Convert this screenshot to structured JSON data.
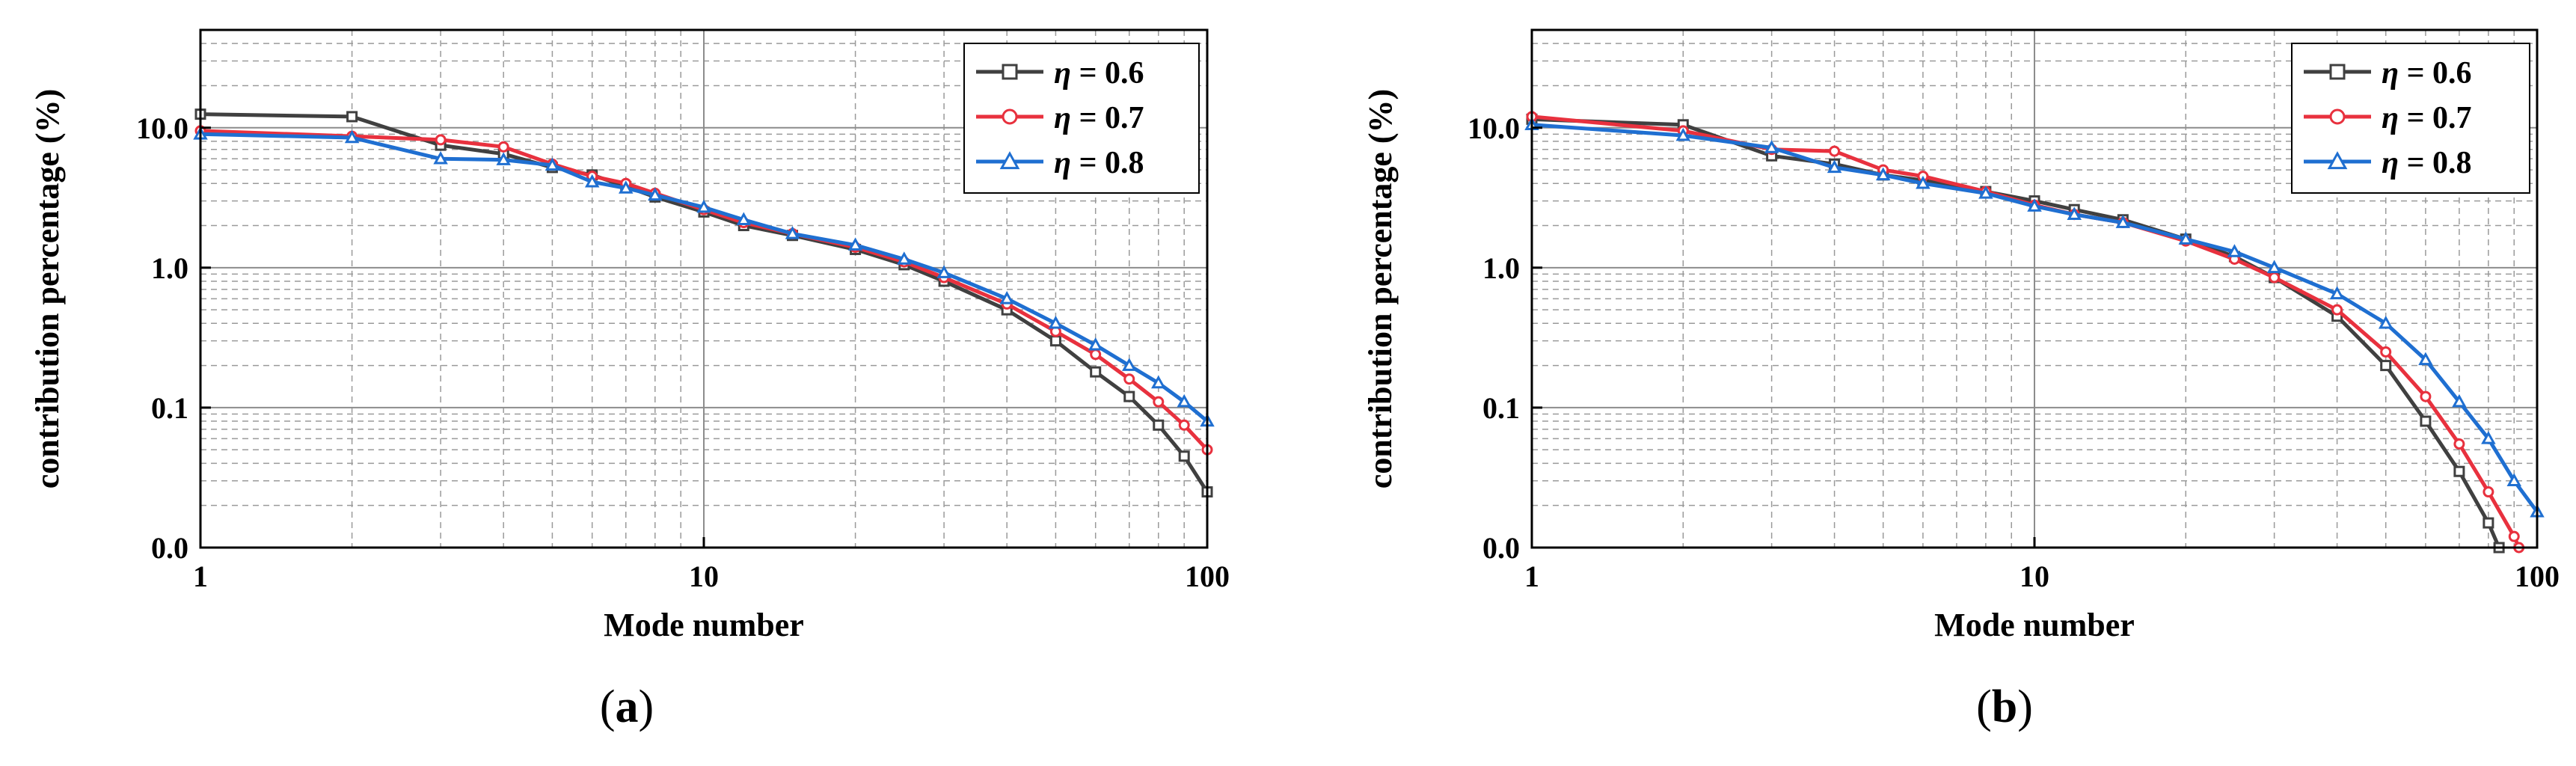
{
  "chart_data": [
    {
      "type": "line",
      "panel": "a",
      "caption_open": "(",
      "caption_letter": "a",
      "caption_close": ")",
      "xlabel": "Mode number",
      "ylabel": "contribution percentage (%)",
      "xscale": "log",
      "yscale": "log",
      "xlim": [
        1,
        100
      ],
      "ylim": [
        0.01,
        50
      ],
      "x_ticks": [
        {
          "v": 1,
          "label": "1"
        },
        {
          "v": 10,
          "label": "10"
        },
        {
          "v": 100,
          "label": "100"
        }
      ],
      "y_ticks": [
        {
          "v": 0.01,
          "label": "0.0"
        },
        {
          "v": 0.1,
          "label": "0.1"
        },
        {
          "v": 1,
          "label": "1.0"
        },
        {
          "v": 10,
          "label": "10.0"
        }
      ],
      "grid": true,
      "legend_position": "top-right",
      "series": [
        {
          "name": "η = 0.6",
          "color": "#404040",
          "marker": "square",
          "points": [
            [
              1,
              12.5
            ],
            [
              2,
              12.0
            ],
            [
              3,
              7.5
            ],
            [
              4,
              6.5
            ],
            [
              5,
              5.2
            ],
            [
              6,
              4.6
            ],
            [
              7,
              3.8
            ],
            [
              8,
              3.2
            ],
            [
              10,
              2.5
            ],
            [
              12,
              2.0
            ],
            [
              15,
              1.7
            ],
            [
              20,
              1.35
            ],
            [
              25,
              1.05
            ],
            [
              30,
              0.8
            ],
            [
              40,
              0.5
            ],
            [
              50,
              0.3
            ],
            [
              60,
              0.18
            ],
            [
              70,
              0.12
            ],
            [
              80,
              0.075
            ],
            [
              90,
              0.045
            ],
            [
              100,
              0.025
            ]
          ]
        },
        {
          "name": "η = 0.7",
          "color": "#e8313e",
          "marker": "circle",
          "points": [
            [
              1,
              9.5
            ],
            [
              2,
              8.7
            ],
            [
              3,
              8.2
            ],
            [
              4,
              7.3
            ],
            [
              5,
              5.5
            ],
            [
              6,
              4.5
            ],
            [
              7,
              4.0
            ],
            [
              8,
              3.4
            ],
            [
              10,
              2.6
            ],
            [
              12,
              2.1
            ],
            [
              15,
              1.75
            ],
            [
              20,
              1.4
            ],
            [
              25,
              1.1
            ],
            [
              30,
              0.85
            ],
            [
              40,
              0.55
            ],
            [
              50,
              0.35
            ],
            [
              60,
              0.24
            ],
            [
              70,
              0.16
            ],
            [
              80,
              0.11
            ],
            [
              90,
              0.075
            ],
            [
              100,
              0.05
            ]
          ]
        },
        {
          "name": "η = 0.8",
          "color": "#1f6fd1",
          "marker": "triangle",
          "points": [
            [
              1,
              9.0
            ],
            [
              2,
              8.5
            ],
            [
              3,
              6.0
            ],
            [
              4,
              5.9
            ],
            [
              5,
              5.4
            ],
            [
              6,
              4.1
            ],
            [
              7,
              3.7
            ],
            [
              8,
              3.3
            ],
            [
              10,
              2.7
            ],
            [
              12,
              2.2
            ],
            [
              15,
              1.75
            ],
            [
              20,
              1.45
            ],
            [
              25,
              1.15
            ],
            [
              30,
              0.92
            ],
            [
              40,
              0.6
            ],
            [
              50,
              0.4
            ],
            [
              60,
              0.28
            ],
            [
              70,
              0.2
            ],
            [
              80,
              0.15
            ],
            [
              90,
              0.11
            ],
            [
              100,
              0.08
            ]
          ]
        }
      ]
    },
    {
      "type": "line",
      "panel": "b",
      "caption_open": "(",
      "caption_letter": "b",
      "caption_close": ")",
      "xlabel": "Mode number",
      "ylabel": "contribution percentage (%)",
      "xscale": "log",
      "yscale": "log",
      "xlim": [
        1,
        100
      ],
      "ylim": [
        0.01,
        50
      ],
      "x_ticks": [
        {
          "v": 1,
          "label": "1"
        },
        {
          "v": 10,
          "label": "10"
        },
        {
          "v": 100,
          "label": "100"
        }
      ],
      "y_ticks": [
        {
          "v": 0.01,
          "label": "0.0"
        },
        {
          "v": 0.1,
          "label": "0.1"
        },
        {
          "v": 1,
          "label": "1.0"
        },
        {
          "v": 10,
          "label": "10.0"
        }
      ],
      "grid": true,
      "legend_position": "top-right",
      "series": [
        {
          "name": "η = 0.6",
          "color": "#404040",
          "marker": "square",
          "points": [
            [
              1,
              11.5
            ],
            [
              2,
              10.5
            ],
            [
              3,
              6.3
            ],
            [
              4,
              5.5
            ],
            [
              5,
              4.6
            ],
            [
              6,
              4.2
            ],
            [
              8,
              3.5
            ],
            [
              10,
              3.0
            ],
            [
              12,
              2.6
            ],
            [
              15,
              2.2
            ],
            [
              20,
              1.6
            ],
            [
              25,
              1.2
            ],
            [
              30,
              0.85
            ],
            [
              40,
              0.45
            ],
            [
              50,
              0.2
            ],
            [
              60,
              0.08
            ],
            [
              70,
              0.035
            ],
            [
              80,
              0.015
            ],
            [
              84,
              0.01
            ]
          ]
        },
        {
          "name": "η = 0.7",
          "color": "#e8313e",
          "marker": "circle",
          "points": [
            [
              1,
              12.0
            ],
            [
              2,
              9.5
            ],
            [
              3,
              7.0
            ],
            [
              4,
              6.8
            ],
            [
              5,
              5.0
            ],
            [
              6,
              4.5
            ],
            [
              8,
              3.5
            ],
            [
              10,
              2.8
            ],
            [
              12,
              2.4
            ],
            [
              15,
              2.1
            ],
            [
              20,
              1.55
            ],
            [
              25,
              1.15
            ],
            [
              30,
              0.85
            ],
            [
              40,
              0.5
            ],
            [
              50,
              0.25
            ],
            [
              60,
              0.12
            ],
            [
              70,
              0.055
            ],
            [
              80,
              0.025
            ],
            [
              90,
              0.012
            ],
            [
              92,
              0.01
            ]
          ]
        },
        {
          "name": "η = 0.8",
          "color": "#1f6fd1",
          "marker": "triangle",
          "points": [
            [
              1,
              10.5
            ],
            [
              2,
              8.8
            ],
            [
              3,
              7.2
            ],
            [
              4,
              5.2
            ],
            [
              5,
              4.6
            ],
            [
              6,
              4.0
            ],
            [
              8,
              3.4
            ],
            [
              10,
              2.75
            ],
            [
              12,
              2.4
            ],
            [
              15,
              2.1
            ],
            [
              20,
              1.6
            ],
            [
              25,
              1.3
            ],
            [
              30,
              1.0
            ],
            [
              40,
              0.65
            ],
            [
              50,
              0.4
            ],
            [
              60,
              0.22
            ],
            [
              70,
              0.11
            ],
            [
              80,
              0.06
            ],
            [
              90,
              0.03
            ],
            [
              100,
              0.018
            ]
          ]
        }
      ]
    }
  ]
}
